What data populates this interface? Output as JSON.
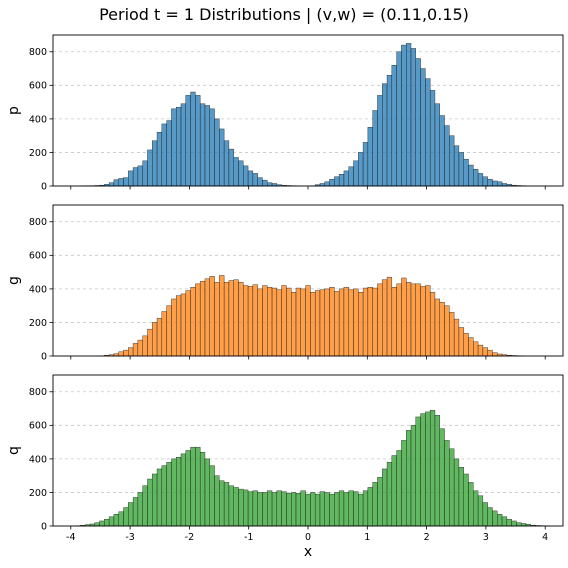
{
  "figure": {
    "title": "Period t = 1 Distributions | (v,w) = (0.11,0.15)"
  },
  "chart_data": [
    {
      "type": "bar",
      "ylabel": "p",
      "xlabel": "",
      "color": "#1f77b4",
      "ylim": [
        0,
        900
      ],
      "xlim": [
        -4.3,
        4.3
      ],
      "bin_start": -4.0,
      "bin_width": 0.0808,
      "x_ticks": [
        -4,
        -3,
        -2,
        -1,
        0,
        1,
        2,
        3,
        4
      ],
      "y_ticks": [
        0,
        200,
        400,
        600,
        800
      ],
      "grid": "y",
      "values": [
        0,
        0,
        1,
        2,
        2,
        3,
        5,
        10,
        20,
        38,
        45,
        50,
        90,
        110,
        120,
        150,
        215,
        270,
        320,
        370,
        390,
        460,
        470,
        490,
        540,
        560,
        540,
        490,
        480,
        460,
        400,
        340,
        270,
        220,
        170,
        150,
        120,
        90,
        75,
        50,
        35,
        20,
        15,
        8,
        4,
        3,
        2,
        1,
        0,
        0,
        2,
        8,
        15,
        25,
        40,
        55,
        70,
        90,
        115,
        150,
        200,
        260,
        350,
        450,
        540,
        610,
        660,
        720,
        800,
        840,
        850,
        820,
        760,
        700,
        640,
        570,
        490,
        420,
        360,
        300,
        240,
        200,
        160,
        125,
        100,
        75,
        55,
        40,
        30,
        25,
        15,
        10,
        5,
        3,
        2,
        0,
        0,
        0,
        0
      ]
    },
    {
      "type": "bar",
      "ylabel": "g",
      "xlabel": "",
      "color": "#ff7f0e",
      "ylim": [
        0,
        900
      ],
      "xlim": [
        -4.3,
        4.3
      ],
      "bin_start": -4.0,
      "bin_width": 0.0808,
      "x_ticks": [
        -4,
        -3,
        -2,
        -1,
        0,
        1,
        2,
        3,
        4
      ],
      "y_ticks": [
        0,
        200,
        400,
        600,
        800
      ],
      "grid": "y",
      "values": [
        0,
        0,
        0,
        0,
        0,
        0,
        1,
        5,
        8,
        14,
        25,
        35,
        50,
        75,
        95,
        120,
        160,
        200,
        225,
        265,
        300,
        340,
        360,
        370,
        390,
        410,
        430,
        445,
        460,
        475,
        440,
        480,
        440,
        450,
        455,
        440,
        420,
        415,
        425,
        400,
        420,
        410,
        405,
        395,
        420,
        405,
        380,
        405,
        400,
        420,
        380,
        390,
        395,
        400,
        410,
        385,
        400,
        410,
        395,
        400,
        380,
        405,
        410,
        405,
        430,
        455,
        470,
        410,
        430,
        465,
        440,
        430,
        430,
        415,
        420,
        380,
        340,
        320,
        300,
        260,
        220,
        170,
        135,
        110,
        85,
        65,
        50,
        35,
        20,
        12,
        8,
        5,
        3,
        2,
        1,
        0,
        0,
        0
      ]
    },
    {
      "type": "bar",
      "ylabel": "q",
      "xlabel": "x",
      "color": "#2ca02c",
      "ylim": [
        0,
        900
      ],
      "xlim": [
        -4.3,
        4.3
      ],
      "bin_start": -4.0,
      "bin_width": 0.0808,
      "x_ticks": [
        -4,
        -3,
        -2,
        -1,
        0,
        1,
        2,
        3,
        4
      ],
      "y_ticks": [
        0,
        200,
        400,
        600,
        800
      ],
      "grid": "y",
      "values": [
        0,
        2,
        5,
        8,
        12,
        20,
        30,
        40,
        55,
        70,
        85,
        110,
        140,
        170,
        200,
        240,
        280,
        310,
        340,
        360,
        380,
        400,
        410,
        430,
        450,
        470,
        470,
        440,
        400,
        360,
        300,
        270,
        260,
        240,
        230,
        220,
        215,
        205,
        210,
        200,
        200,
        210,
        200,
        210,
        205,
        195,
        200,
        195,
        210,
        190,
        200,
        190,
        205,
        200,
        190,
        200,
        210,
        200,
        210,
        205,
        190,
        210,
        230,
        260,
        290,
        340,
        380,
        420,
        450,
        510,
        570,
        600,
        650,
        670,
        680,
        690,
        660,
        580,
        510,
        460,
        400,
        350,
        310,
        260,
        210,
        180,
        140,
        110,
        90,
        70,
        55,
        40,
        30,
        20,
        15,
        10,
        5,
        3,
        2,
        1,
        0
      ]
    }
  ]
}
